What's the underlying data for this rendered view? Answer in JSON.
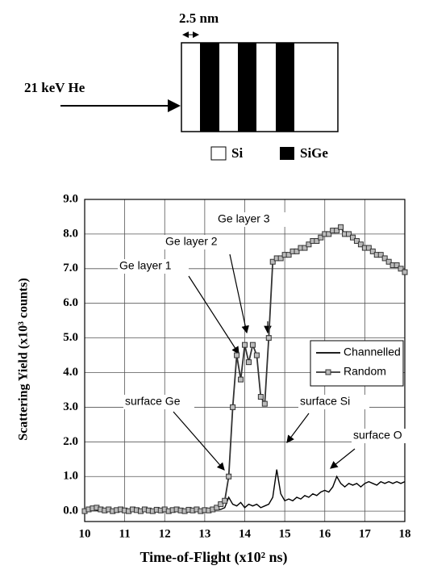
{
  "diagram": {
    "spacing_label": "2.5 nm",
    "beam_label": "21 keV He",
    "legend": [
      "Si",
      "SiGe"
    ]
  },
  "chart_data": {
    "type": "line",
    "xlabel": "Time-of-Flight  (x10² ns)",
    "ylabel": "Scattering  Yield  (x10³  counts)",
    "xlim": [
      10,
      18
    ],
    "ylim": [
      -0.3,
      9.0
    ],
    "xticks": [
      10,
      11,
      12,
      13,
      14,
      15,
      16,
      17,
      18
    ],
    "yticks": [
      {
        "value": 0,
        "label": "0.0"
      },
      {
        "value": 1,
        "label": "1.0"
      },
      {
        "value": 2,
        "label": "2.0"
      },
      {
        "value": 3,
        "label": "3.0"
      },
      {
        "value": 4,
        "label": "4.0"
      },
      {
        "value": 5,
        "label": "5.0"
      },
      {
        "value": 6,
        "label": "6.0"
      },
      {
        "value": 7,
        "label": "7.0"
      },
      {
        "value": 8,
        "label": "8.0"
      },
      {
        "value": 9,
        "label": "9.0"
      }
    ],
    "grid": true,
    "legend_position": "right",
    "x": [
      10.0,
      10.1,
      10.2,
      10.3,
      10.4,
      10.5,
      10.6,
      10.7,
      10.8,
      10.9,
      11.0,
      11.1,
      11.2,
      11.3,
      11.4,
      11.5,
      11.6,
      11.7,
      11.8,
      11.9,
      12.0,
      12.1,
      12.2,
      12.3,
      12.4,
      12.5,
      12.6,
      12.7,
      12.8,
      12.9,
      13.0,
      13.1,
      13.2,
      13.3,
      13.4,
      13.5,
      13.6,
      13.7,
      13.8,
      13.9,
      14.0,
      14.1,
      14.2,
      14.3,
      14.4,
      14.5,
      14.6,
      14.7,
      14.8,
      14.9,
      15.0,
      15.1,
      15.2,
      15.3,
      15.4,
      15.5,
      15.6,
      15.7,
      15.8,
      15.9,
      16.0,
      16.1,
      16.2,
      16.3,
      16.4,
      16.5,
      16.6,
      16.7,
      16.8,
      16.9,
      17.0,
      17.1,
      17.2,
      17.3,
      17.4,
      17.5,
      17.6,
      17.7,
      17.8,
      17.9,
      18.0
    ],
    "series": [
      {
        "name": "Channelled",
        "color": "#000000",
        "marker": false,
        "values": [
          0.02,
          0.0,
          0.04,
          0.02,
          0.0,
          0.03,
          0.01,
          0.04,
          0.0,
          0.02,
          0.03,
          0.0,
          0.02,
          0.04,
          0.01,
          0.0,
          0.03,
          0.02,
          0.0,
          0.04,
          0.02,
          0.0,
          0.03,
          0.01,
          0.02,
          0.0,
          0.03,
          0.02,
          0.0,
          0.02,
          0.04,
          0.02,
          0.05,
          0.03,
          0.05,
          0.1,
          0.4,
          0.2,
          0.15,
          0.25,
          0.1,
          0.2,
          0.15,
          0.2,
          0.1,
          0.15,
          0.2,
          0.4,
          1.2,
          0.5,
          0.3,
          0.35,
          0.3,
          0.4,
          0.35,
          0.45,
          0.4,
          0.5,
          0.45,
          0.55,
          0.6,
          0.55,
          0.7,
          1.0,
          0.8,
          0.7,
          0.8,
          0.75,
          0.8,
          0.7,
          0.8,
          0.85,
          0.8,
          0.75,
          0.85,
          0.8,
          0.85,
          0.8,
          0.85,
          0.8,
          0.85
        ]
      },
      {
        "name": "Random",
        "color": "#333333",
        "marker": true,
        "values": [
          0.0,
          0.05,
          0.08,
          0.1,
          0.05,
          0.02,
          0.05,
          0.0,
          0.03,
          0.05,
          0.02,
          0.0,
          0.05,
          0.03,
          0.0,
          0.05,
          0.02,
          0.0,
          0.04,
          0.02,
          0.05,
          0.0,
          0.03,
          0.05,
          0.02,
          0.0,
          0.04,
          0.02,
          0.05,
          0.0,
          0.03,
          0.02,
          0.05,
          0.1,
          0.2,
          0.3,
          1.0,
          3.0,
          4.5,
          3.8,
          4.8,
          4.3,
          4.8,
          4.5,
          3.3,
          3.1,
          5.0,
          7.2,
          7.3,
          7.3,
          7.4,
          7.4,
          7.5,
          7.5,
          7.6,
          7.6,
          7.7,
          7.8,
          7.8,
          7.9,
          8.0,
          8.0,
          8.1,
          8.1,
          8.2,
          8.0,
          8.0,
          7.9,
          7.8,
          7.7,
          7.6,
          7.6,
          7.5,
          7.4,
          7.4,
          7.3,
          7.2,
          7.1,
          7.1,
          7.0,
          6.9
        ]
      }
    ],
    "annotations": [
      "Ge layer 3",
      "Ge layer 2",
      "Ge layer 1",
      "surface Ge",
      "surface Si",
      "surface O"
    ]
  }
}
